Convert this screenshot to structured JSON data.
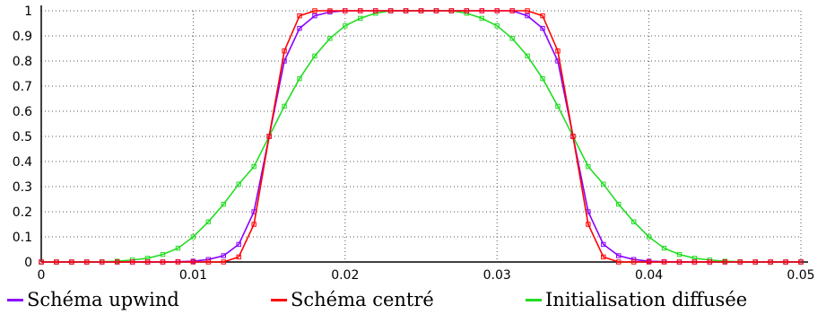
{
  "chart_data": {
    "type": "line",
    "title": "",
    "xlabel": "",
    "ylabel": "",
    "xlim": [
      0,
      0.05
    ],
    "ylim": [
      0,
      1
    ],
    "xticks": [
      "0",
      "0.01",
      "0.02",
      "0.03",
      "0.04",
      "0.05"
    ],
    "yticks": [
      "0",
      "0.1",
      "0.2",
      "0.3",
      "0.4",
      "0.5",
      "0.6",
      "0.7",
      "0.8",
      "0.9",
      "1"
    ],
    "grid": true,
    "legend_position": "bottom",
    "series": [
      {
        "name": "Schéma upwind",
        "color": "#8a00ff",
        "x": [
          0.0,
          0.001,
          0.002,
          0.003,
          0.004,
          0.005,
          0.006,
          0.007,
          0.008,
          0.009,
          0.01,
          0.011,
          0.012,
          0.013,
          0.014,
          0.015,
          0.016,
          0.017,
          0.018,
          0.019,
          0.02,
          0.021,
          0.022,
          0.023,
          0.024,
          0.025,
          0.026,
          0.027,
          0.028,
          0.029,
          0.03,
          0.031,
          0.032,
          0.033,
          0.034,
          0.035,
          0.036,
          0.037,
          0.038,
          0.039,
          0.04,
          0.041,
          0.042,
          0.043,
          0.044,
          0.045,
          0.046,
          0.047,
          0.048,
          0.049,
          0.05
        ],
        "y": [
          0,
          0,
          0,
          0,
          0,
          0,
          0,
          0,
          0,
          0.001,
          0.003,
          0.01,
          0.025,
          0.07,
          0.2,
          0.5,
          0.8,
          0.93,
          0.98,
          0.995,
          1,
          1,
          1,
          1,
          1,
          1,
          1,
          1,
          1,
          1,
          1,
          1,
          0.98,
          0.93,
          0.8,
          0.5,
          0.2,
          0.07,
          0.025,
          0.01,
          0.003,
          0.001,
          0,
          0,
          0,
          0,
          0,
          0,
          0,
          0,
          0
        ]
      },
      {
        "name": "Schéma centré",
        "color": "#ff0000",
        "x": [
          0.0,
          0.001,
          0.002,
          0.003,
          0.004,
          0.005,
          0.006,
          0.007,
          0.008,
          0.009,
          0.01,
          0.011,
          0.012,
          0.013,
          0.014,
          0.015,
          0.016,
          0.017,
          0.018,
          0.019,
          0.02,
          0.021,
          0.022,
          0.023,
          0.024,
          0.025,
          0.026,
          0.027,
          0.028,
          0.029,
          0.03,
          0.031,
          0.032,
          0.033,
          0.034,
          0.035,
          0.036,
          0.037,
          0.038,
          0.039,
          0.04,
          0.041,
          0.042,
          0.043,
          0.044,
          0.045,
          0.046,
          0.047,
          0.048,
          0.049,
          0.05
        ],
        "y": [
          0,
          0,
          0,
          0,
          0,
          0,
          0,
          0,
          0,
          0,
          0,
          0,
          0,
          0.02,
          0.15,
          0.5,
          0.84,
          0.98,
          1,
          1,
          1,
          1,
          1,
          1,
          1,
          1,
          1,
          1,
          1,
          1,
          1,
          1,
          1,
          0.98,
          0.84,
          0.5,
          0.15,
          0.02,
          0,
          0,
          0,
          0,
          0,
          0,
          0,
          0,
          0,
          0,
          0,
          0,
          0
        ]
      },
      {
        "name": "Initialisation diffusée",
        "color": "#22dd22",
        "x": [
          0.0,
          0.001,
          0.002,
          0.003,
          0.004,
          0.005,
          0.006,
          0.007,
          0.008,
          0.009,
          0.01,
          0.011,
          0.012,
          0.013,
          0.014,
          0.015,
          0.016,
          0.017,
          0.018,
          0.019,
          0.02,
          0.021,
          0.022,
          0.023,
          0.024,
          0.025,
          0.026,
          0.027,
          0.028,
          0.029,
          0.03,
          0.031,
          0.032,
          0.033,
          0.034,
          0.035,
          0.036,
          0.037,
          0.038,
          0.039,
          0.04,
          0.041,
          0.042,
          0.043,
          0.044,
          0.045,
          0.046,
          0.047,
          0.048,
          0.049,
          0.05
        ],
        "y": [
          0,
          0,
          0,
          0,
          0.001,
          0.003,
          0.008,
          0.015,
          0.03,
          0.055,
          0.1,
          0.16,
          0.23,
          0.31,
          0.38,
          0.5,
          0.62,
          0.73,
          0.82,
          0.89,
          0.94,
          0.97,
          0.99,
          1,
          1,
          1,
          1,
          1,
          0.99,
          0.97,
          0.94,
          0.89,
          0.82,
          0.73,
          0.62,
          0.5,
          0.38,
          0.31,
          0.23,
          0.16,
          0.1,
          0.055,
          0.03,
          0.015,
          0.008,
          0.003,
          0.001,
          0,
          0,
          0,
          0
        ]
      }
    ]
  },
  "legend": {
    "items": [
      {
        "label": "Schéma upwind",
        "color": "#8a00ff"
      },
      {
        "label": "Schéma centré",
        "color": "#ff0000"
      },
      {
        "label": "Initialisation diffusée",
        "color": "#22dd22"
      }
    ]
  }
}
